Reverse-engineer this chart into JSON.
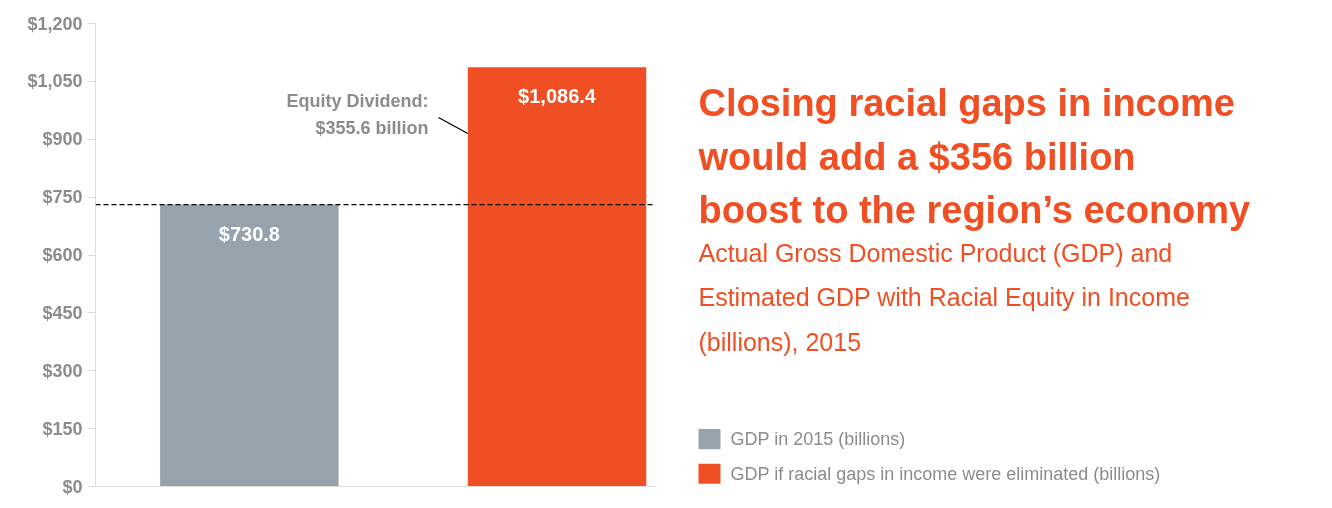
{
  "chart_data": {
    "type": "bar",
    "title": "Closing racial gaps in income\nwould add a $356 billion\nboost to the region’s economy",
    "subtitle": "Actual Gross Domestic Product (GDP) and\nEstimated GDP with Racial Equity in Income\n(billions), 2015",
    "categories": [
      null,
      null
    ],
    "series": [
      {
        "name": "GDP in 2015 (billions)",
        "color": "#97a3ac",
        "values": [
          730.8,
          null
        ]
      },
      {
        "name": "GDP if racial gaps in income were eliminated (billions)",
        "color": "#f04e23",
        "values": [
          null,
          1086.4
        ]
      }
    ],
    "value_labels": [
      [
        "$730.8",
        null
      ],
      [
        null,
        "$1,086.4"
      ]
    ],
    "ylim": [
      0,
      1200
    ],
    "yticks": [
      {
        "value": 0,
        "label": "$0"
      },
      {
        "value": 150,
        "label": "$150"
      },
      {
        "value": 300,
        "label": "$300"
      },
      {
        "value": 450,
        "label": "$450"
      },
      {
        "value": 600,
        "label": "$600"
      },
      {
        "value": 750,
        "label": "$750"
      },
      {
        "value": 900,
        "label": "$900"
      },
      {
        "value": 1050,
        "label": "$1,050"
      },
      {
        "value": 1200,
        "label": "$1,200"
      }
    ],
    "ref_lines": [
      {
        "axis": "y",
        "value": 730.8,
        "color": "#000000",
        "line_style": "dashed"
      }
    ],
    "annotations": [
      "Equity Dividend:\n$355.6 billion"
    ],
    "grid": false,
    "legend": "bottom right"
  }
}
